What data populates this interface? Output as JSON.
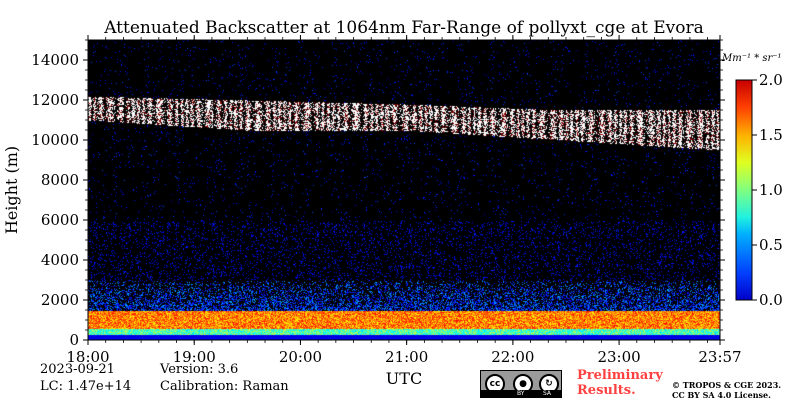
{
  "chart_data": {
    "type": "heatmap",
    "title": "Attenuated Backscatter at 1064nm Far-Range of pollyxt_cge at Evora",
    "xlabel": "UTC",
    "ylabel": "Height (m)",
    "x_ticks": [
      "18:00",
      "19:00",
      "20:00",
      "21:00",
      "22:00",
      "23:00",
      "23:57"
    ],
    "x_range_hours": [
      18.0,
      23.95
    ],
    "y_ticks": [
      0,
      2000,
      4000,
      6000,
      8000,
      10000,
      12000,
      14000
    ],
    "y_range_m": [
      0,
      15000
    ],
    "colorbar": {
      "unit_label": "Mm⁻¹ * sr⁻¹",
      "min": 0.0,
      "max": 2.0,
      "ticks": [
        "0.0",
        "0.5",
        "1.0",
        "1.5",
        "2.0"
      ],
      "colormap": "jet"
    },
    "background_color": "#000000",
    "features": [
      {
        "name": "cirrus cloud layer",
        "time_start": "18:00",
        "time_end": "23:57",
        "base_m": [
          11000,
          10500,
          10500,
          10000,
          9500
        ],
        "top_m": [
          12200,
          12000,
          11800,
          11500,
          11500
        ],
        "value": 2.0
      },
      {
        "name": "boundary layer",
        "time_start": "18:00",
        "time_end": "23:57",
        "top_m": 1500,
        "value": 1.4
      },
      {
        "name": "aerosol layer",
        "time_start": "18:00",
        "time_end": "23:57",
        "base_m": 1500,
        "top_m": 3000,
        "value": 0.4
      }
    ]
  },
  "footer": {
    "date": "2023-09-21",
    "lc": "LC: 1.47e+14",
    "version": "Version: 3.6",
    "calibration": "Calibration: Raman",
    "preliminary_line1": "Preliminary",
    "preliminary_line2": "Results.",
    "copyright_line1": "© TROPOS & CGE 2023.",
    "copyright_line2": "CC BY SA 4.0 License.",
    "license_badge": {
      "cc": "cc",
      "by": "BY",
      "sa": "SA"
    }
  }
}
